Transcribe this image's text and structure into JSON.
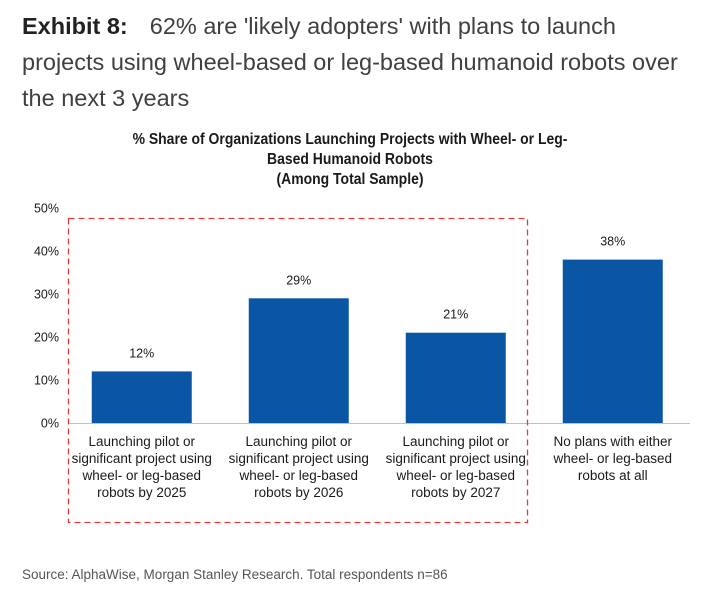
{
  "exhibit": {
    "label": "Exhibit 8:",
    "headline": "62% are 'likely adopters' with plans to launch projects using wheel-based or leg-based humanoid robots over the next 3 years"
  },
  "chart_data": {
    "type": "bar",
    "title": "% Share of Organizations Launching Projects with Wheel- or Leg-Based Humanoid Robots (Among Total Sample)",
    "title_lines": [
      "% Share of Organizations Launching Projects with Wheel- or Leg-",
      "Based Humanoid Robots",
      "(Among Total Sample)"
    ],
    "xlabel": "",
    "ylabel": "",
    "ylim": [
      0,
      50
    ],
    "yticks": [
      0,
      10,
      20,
      30,
      40,
      50
    ],
    "ytick_labels": [
      "0%",
      "10%",
      "20%",
      "30%",
      "40%",
      "50%"
    ],
    "grid": false,
    "legend": "none",
    "categories": [
      "Launching pilot or significant project using wheel- or leg-based robots by 2025",
      "Launching pilot or significant project using wheel- or leg-based robots by 2026",
      "Launching pilot or significant project using wheel- or leg-based robots by 2027",
      "No plans with either wheel- or leg-based robots at all"
    ],
    "category_lines": [
      [
        "Launching pilot or",
        "significant project using",
        "wheel- or leg-based",
        "robots by 2025"
      ],
      [
        "Launching pilot or",
        "significant project using",
        "wheel- or leg-based",
        "robots by 2026"
      ],
      [
        "Launching pilot or",
        "significant project using",
        "wheel- or leg-based",
        "robots by 2027"
      ],
      [
        "No plans with either",
        "wheel- or leg-based",
        "robots at all"
      ]
    ],
    "values": [
      12,
      29,
      21,
      38
    ],
    "data_labels": [
      "12%",
      "29%",
      "21%",
      "38%"
    ],
    "bar_color": "#0a56a5",
    "annotation": {
      "type": "dashed-box",
      "color": "#e03c3c",
      "encloses_categories": [
        0,
        1,
        2
      ],
      "meaning": "likely adopters (62%)"
    }
  },
  "source": "Source: AlphaWise, Morgan Stanley Research. Total respondents n=86"
}
